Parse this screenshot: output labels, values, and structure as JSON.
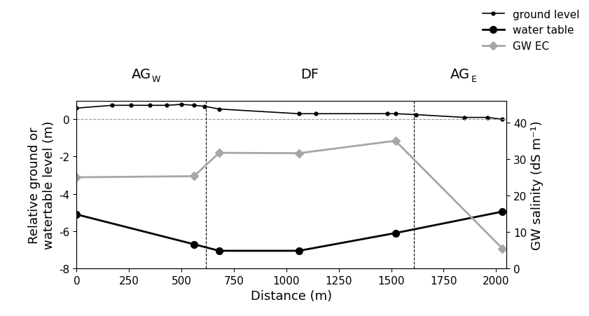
{
  "chart_data": {
    "type": "line",
    "x_label": "Distance (m)",
    "y_label": "Relative ground or\nwatertable level (m)",
    "y2_label": "GW salinity (dS m⁻¹)",
    "xlim": [
      0,
      2050
    ],
    "xticks": [
      0,
      250,
      500,
      750,
      1000,
      1250,
      1500,
      1750,
      2000
    ],
    "ylim": [
      -8,
      1
    ],
    "yticks": [
      -8,
      -6,
      -4,
      -2,
      0
    ],
    "y2lim": [
      0,
      46
    ],
    "y2ticks": [
      0,
      10,
      20,
      30,
      40
    ],
    "legend": "upper right",
    "reference_y": 0,
    "zone_boundaries": [
      615,
      1610
    ],
    "zones": [
      {
        "label": "AG",
        "subscript": "W"
      },
      {
        "label": "DF",
        "subscript": null
      },
      {
        "label": "AG",
        "subscript": "E"
      }
    ],
    "series": [
      {
        "name": "ground level",
        "color": "#000000",
        "marker": "small_circle",
        "line_style": "solid",
        "x": [
          0,
          170,
          260,
          350,
          430,
          500,
          560,
          610,
          680,
          1060,
          1140,
          1480,
          1520,
          1620,
          1850,
          1960,
          2030
        ],
        "values": [
          0.6,
          0.75,
          0.75,
          0.75,
          0.75,
          0.8,
          0.75,
          0.7,
          0.55,
          0.3,
          0.3,
          0.3,
          0.3,
          0.25,
          0.1,
          0.1,
          0.0
        ]
      },
      {
        "name": "water table",
        "color": "#000000",
        "marker": "circle",
        "line_style": "solid",
        "x": [
          0,
          560,
          680,
          1060,
          1520,
          2030
        ],
        "values": [
          -5.1,
          -6.7,
          -7.05,
          -7.05,
          -6.1,
          -4.95
        ]
      },
      {
        "name": "GW EC",
        "color": "#a6a6a6",
        "marker": "diamond",
        "line_style": "solid",
        "axis": "y2",
        "x": [
          0,
          560,
          680,
          1060,
          1520,
          2030
        ],
        "values": [
          25,
          25.3,
          31.7,
          31.6,
          35,
          5.5
        ]
      }
    ]
  }
}
